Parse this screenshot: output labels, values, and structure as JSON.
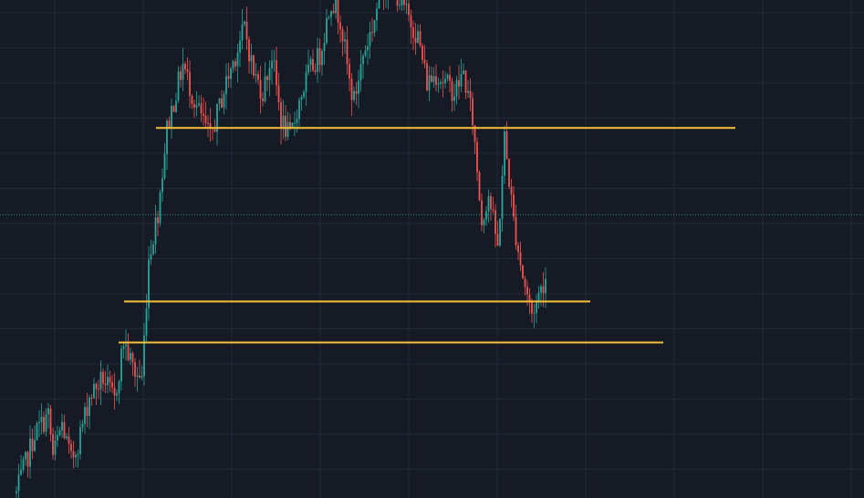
{
  "chart_data": {
    "type": "candlestick",
    "title": "",
    "xlabel": "",
    "ylabel": "",
    "grid": true,
    "legend": "none",
    "price_range": [
      0,
      100
    ],
    "colors": {
      "background": "#161a25",
      "grid": "#232836",
      "bull": "#26a69a",
      "bear": "#ef5350",
      "level_line": "#f5c03a",
      "last_price_line": "#26a69a"
    },
    "price_waypoints": [
      [
        0,
        1
      ],
      [
        8,
        14
      ],
      [
        14,
        18
      ],
      [
        16,
        9
      ],
      [
        20,
        16
      ],
      [
        24,
        8
      ],
      [
        27,
        12
      ],
      [
        32,
        22
      ],
      [
        38,
        26
      ],
      [
        43,
        21
      ],
      [
        47,
        34
      ],
      [
        52,
        27
      ],
      [
        55,
        26
      ],
      [
        58,
        52
      ],
      [
        62,
        62
      ],
      [
        66,
        80
      ],
      [
        73,
        94
      ],
      [
        78,
        86
      ],
      [
        85,
        78
      ],
      [
        92,
        90
      ],
      [
        96,
        96
      ],
      [
        100,
        102
      ],
      [
        104,
        92
      ],
      [
        108,
        88
      ],
      [
        112,
        96
      ],
      [
        116,
        82
      ],
      [
        120,
        78
      ],
      [
        124,
        86
      ],
      [
        128,
        92
      ],
      [
        133,
        96
      ],
      [
        138,
        108
      ],
      [
        142,
        104
      ],
      [
        146,
        90
      ],
      [
        148,
        86
      ],
      [
        152,
        96
      ],
      [
        156,
        102
      ],
      [
        160,
        110
      ],
      [
        164,
        112
      ],
      [
        168,
        108
      ],
      [
        172,
        104
      ],
      [
        176,
        100
      ],
      [
        180,
        90
      ],
      [
        184,
        92
      ],
      [
        188,
        90
      ],
      [
        192,
        88
      ],
      [
        196,
        92
      ],
      [
        200,
        82
      ],
      [
        204,
        60
      ],
      [
        207,
        66
      ],
      [
        211,
        54
      ],
      [
        214,
        78
      ],
      [
        218,
        60
      ],
      [
        222,
        48
      ],
      [
        226,
        40
      ],
      [
        229,
        44
      ],
      [
        232,
        48
      ]
    ],
    "support_resistance_levels": [
      80.2,
      42.6,
      33.7
    ],
    "last_price": 61.4
  }
}
